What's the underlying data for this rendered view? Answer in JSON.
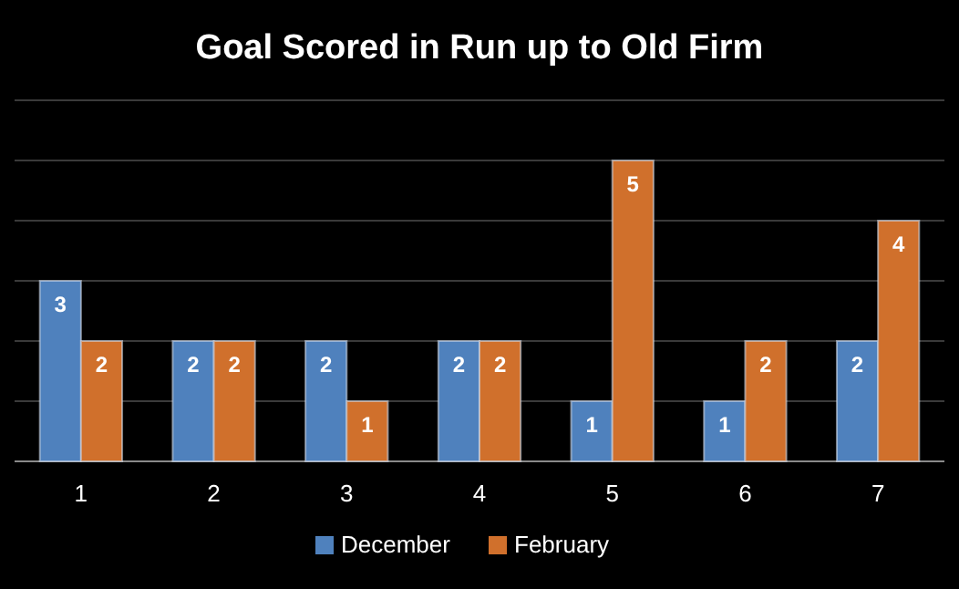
{
  "chart_data": {
    "type": "bar",
    "title": "Goal Scored in Run up to Old Firm",
    "categories": [
      "1",
      "2",
      "3",
      "4",
      "5",
      "6",
      "7"
    ],
    "series": [
      {
        "name": "December",
        "color": "#4f81bd",
        "values": [
          3,
          2,
          2,
          2,
          1,
          1,
          2
        ]
      },
      {
        "name": "February",
        "color": "#d0702c",
        "values": [
          2,
          2,
          1,
          2,
          5,
          2,
          4
        ]
      }
    ],
    "ylim": [
      0,
      6
    ],
    "yticks": [
      {
        "value": 0,
        "label": null
      },
      {
        "value": 1,
        "label": null
      },
      {
        "value": 2,
        "label": null
      },
      {
        "value": 3,
        "label": null
      },
      {
        "value": 4,
        "label": null
      },
      {
        "value": 5,
        "label": null
      },
      {
        "value": 6,
        "label": null
      }
    ],
    "tick_labels": "x",
    "grid": "y",
    "legend": "bottom",
    "data_labels": true
  }
}
